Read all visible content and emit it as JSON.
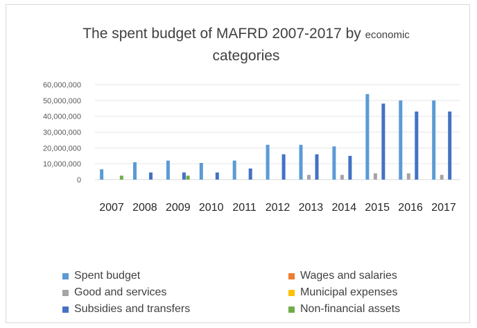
{
  "chart_data": {
    "type": "bar",
    "title": {
      "main": "The spent budget of MAFRD 2007-2017 by",
      "small": "economic",
      "line2": "categories"
    },
    "xlabel": "",
    "ylabel": "",
    "categories": [
      "2007",
      "2008",
      "2009",
      "2010",
      "2011",
      "2012",
      "2013",
      "2014",
      "2015",
      "2016",
      "2017"
    ],
    "ylim": [
      0,
      60000000
    ],
    "yticks": [
      0,
      10000000,
      20000000,
      30000000,
      40000000,
      50000000,
      60000000
    ],
    "ytick_labels": [
      "0",
      "10,000,000",
      "20,000,000",
      "30,000,000",
      "40,000,000",
      "50,000,000",
      "60,000,000"
    ],
    "grid": true,
    "legend_position": "bottom",
    "series": [
      {
        "name": "Spent budget",
        "color": "#5b9bd5",
        "values": [
          6500000,
          11000000,
          12000000,
          10500000,
          12000000,
          22000000,
          22000000,
          21000000,
          54000000,
          50000000,
          50000000
        ]
      },
      {
        "name": "Wages and salaries",
        "color": "#ed7d31",
        "values": [
          0,
          0,
          0,
          0,
          0,
          0,
          0,
          0,
          0,
          0,
          0
        ]
      },
      {
        "name": "Good and services",
        "color": "#a5a5a5",
        "values": [
          0,
          0,
          0,
          0,
          0,
          0,
          3000000,
          3000000,
          4000000,
          4000000,
          3000000
        ]
      },
      {
        "name": "Municipal expenses",
        "color": "#ffc000",
        "values": [
          0,
          0,
          0,
          0,
          0,
          0,
          0,
          0,
          0,
          0,
          0
        ]
      },
      {
        "name": "Subsidies and transfers",
        "color": "#4472c4",
        "values": [
          0,
          4500000,
          4500000,
          4500000,
          7000000,
          16000000,
          16000000,
          15000000,
          48000000,
          43000000,
          43000000
        ]
      },
      {
        "name": "Non-financial assets",
        "color": "#70ad47",
        "values": [
          2500000,
          0,
          2500000,
          0,
          0,
          0,
          0,
          0,
          0,
          0,
          0
        ]
      }
    ]
  }
}
